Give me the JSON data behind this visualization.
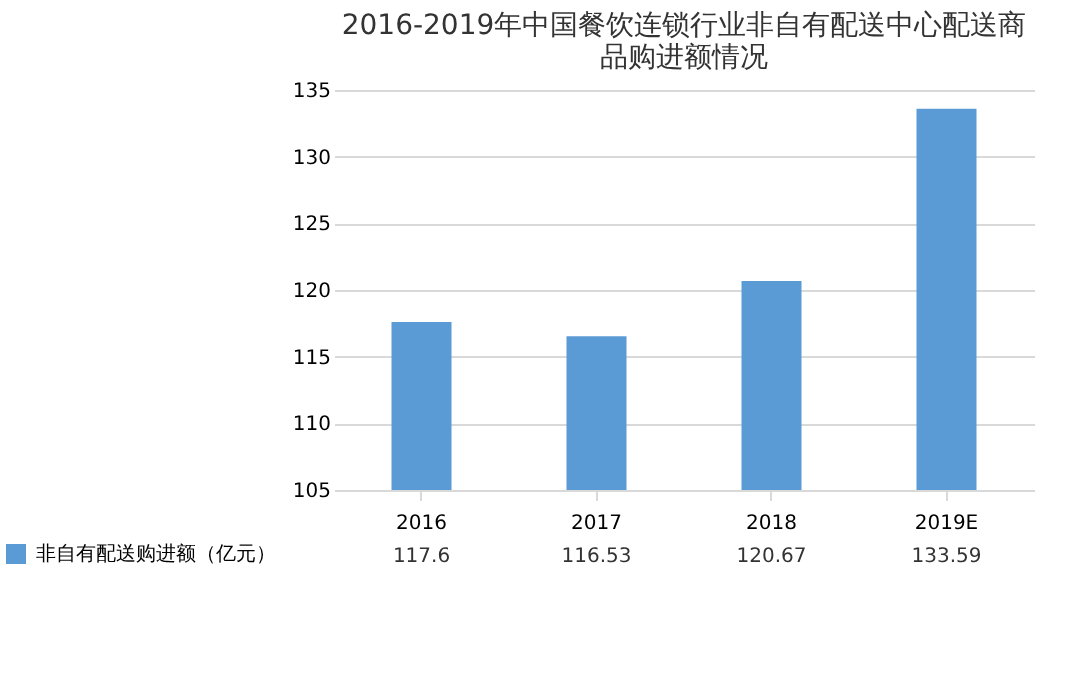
{
  "chart_data": {
    "type": "bar",
    "title": [
      "2016-2019年中国餐饮连锁行业非自有配送中心配送商",
      "品购进额情况"
    ],
    "categories": [
      "2016",
      "2017",
      "2018",
      "2019E"
    ],
    "series": [
      {
        "name": "非自有配送购进额（亿元）",
        "color": "#5b9bd5",
        "values": [
          117.6,
          116.53,
          120.67,
          133.59
        ]
      }
    ],
    "ylim": [
      105,
      135
    ],
    "yticks": [
      105,
      110,
      115,
      120,
      125,
      130,
      135
    ],
    "grid": "y",
    "data_labels": true,
    "legend": "bottom left"
  }
}
